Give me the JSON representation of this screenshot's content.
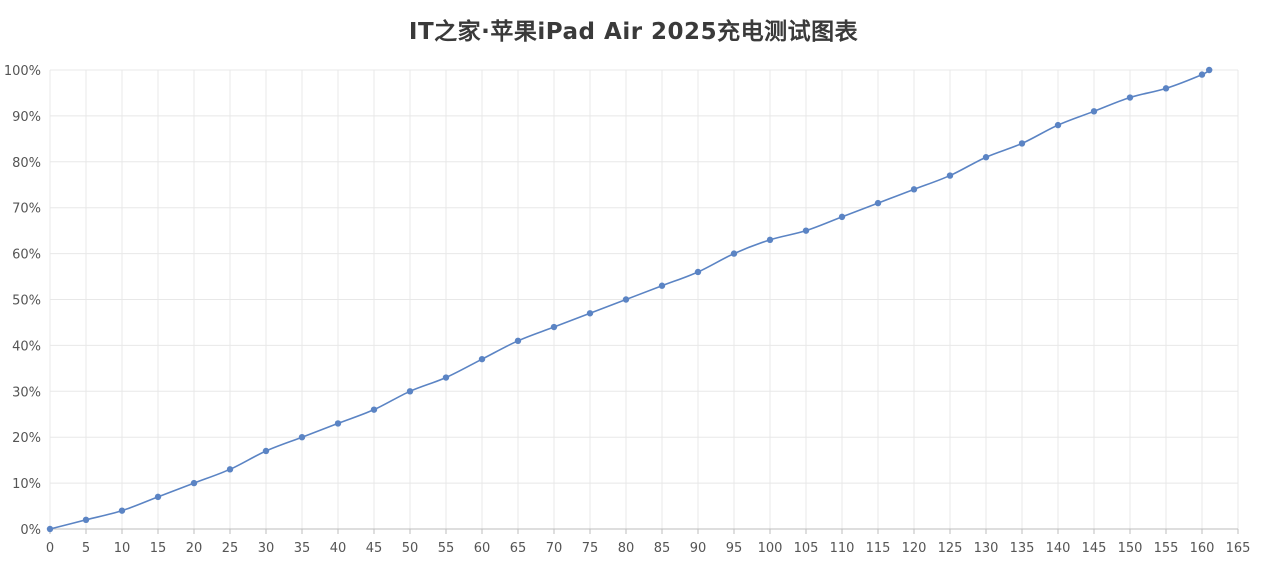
{
  "chart_data": {
    "type": "line",
    "title": "IT之家·苹果iPad Air 2025充电测试图表",
    "xlabel": "",
    "ylabel": "",
    "xlim": [
      0,
      165
    ],
    "ylim": [
      0,
      100
    ],
    "grid": true,
    "x_ticks": [
      "0",
      "5",
      "10",
      "15",
      "20",
      "25",
      "30",
      "35",
      "40",
      "45",
      "50",
      "55",
      "60",
      "65",
      "70",
      "75",
      "80",
      "85",
      "90",
      "95",
      "100",
      "105",
      "110",
      "115",
      "120",
      "125",
      "130",
      "135",
      "140",
      "145",
      "150",
      "155",
      "160",
      "165"
    ],
    "y_ticks": [
      "0%",
      "10%",
      "20%",
      "30%",
      "40%",
      "50%",
      "60%",
      "70%",
      "80%",
      "90%",
      "100%"
    ],
    "series": [
      {
        "color": "#5b84c4",
        "points": [
          {
            "x": 0,
            "y": 0
          },
          {
            "x": 5,
            "y": 2
          },
          {
            "x": 10,
            "y": 4
          },
          {
            "x": 15,
            "y": 7
          },
          {
            "x": 20,
            "y": 10
          },
          {
            "x": 25,
            "y": 13
          },
          {
            "x": 30,
            "y": 17
          },
          {
            "x": 35,
            "y": 20
          },
          {
            "x": 40,
            "y": 23
          },
          {
            "x": 45,
            "y": 26
          },
          {
            "x": 50,
            "y": 30
          },
          {
            "x": 55,
            "y": 33
          },
          {
            "x": 60,
            "y": 37
          },
          {
            "x": 65,
            "y": 41
          },
          {
            "x": 70,
            "y": 44
          },
          {
            "x": 75,
            "y": 47
          },
          {
            "x": 80,
            "y": 50
          },
          {
            "x": 85,
            "y": 53
          },
          {
            "x": 90,
            "y": 56
          },
          {
            "x": 95,
            "y": 60
          },
          {
            "x": 100,
            "y": 63
          },
          {
            "x": 105,
            "y": 65
          },
          {
            "x": 110,
            "y": 68
          },
          {
            "x": 115,
            "y": 71
          },
          {
            "x": 120,
            "y": 74
          },
          {
            "x": 125,
            "y": 77
          },
          {
            "x": 130,
            "y": 81
          },
          {
            "x": 135,
            "y": 84
          },
          {
            "x": 140,
            "y": 88
          },
          {
            "x": 145,
            "y": 91
          },
          {
            "x": 150,
            "y": 94
          },
          {
            "x": 155,
            "y": 96
          },
          {
            "x": 160,
            "y": 99
          },
          {
            "x": 161,
            "y": 100
          }
        ]
      }
    ]
  }
}
